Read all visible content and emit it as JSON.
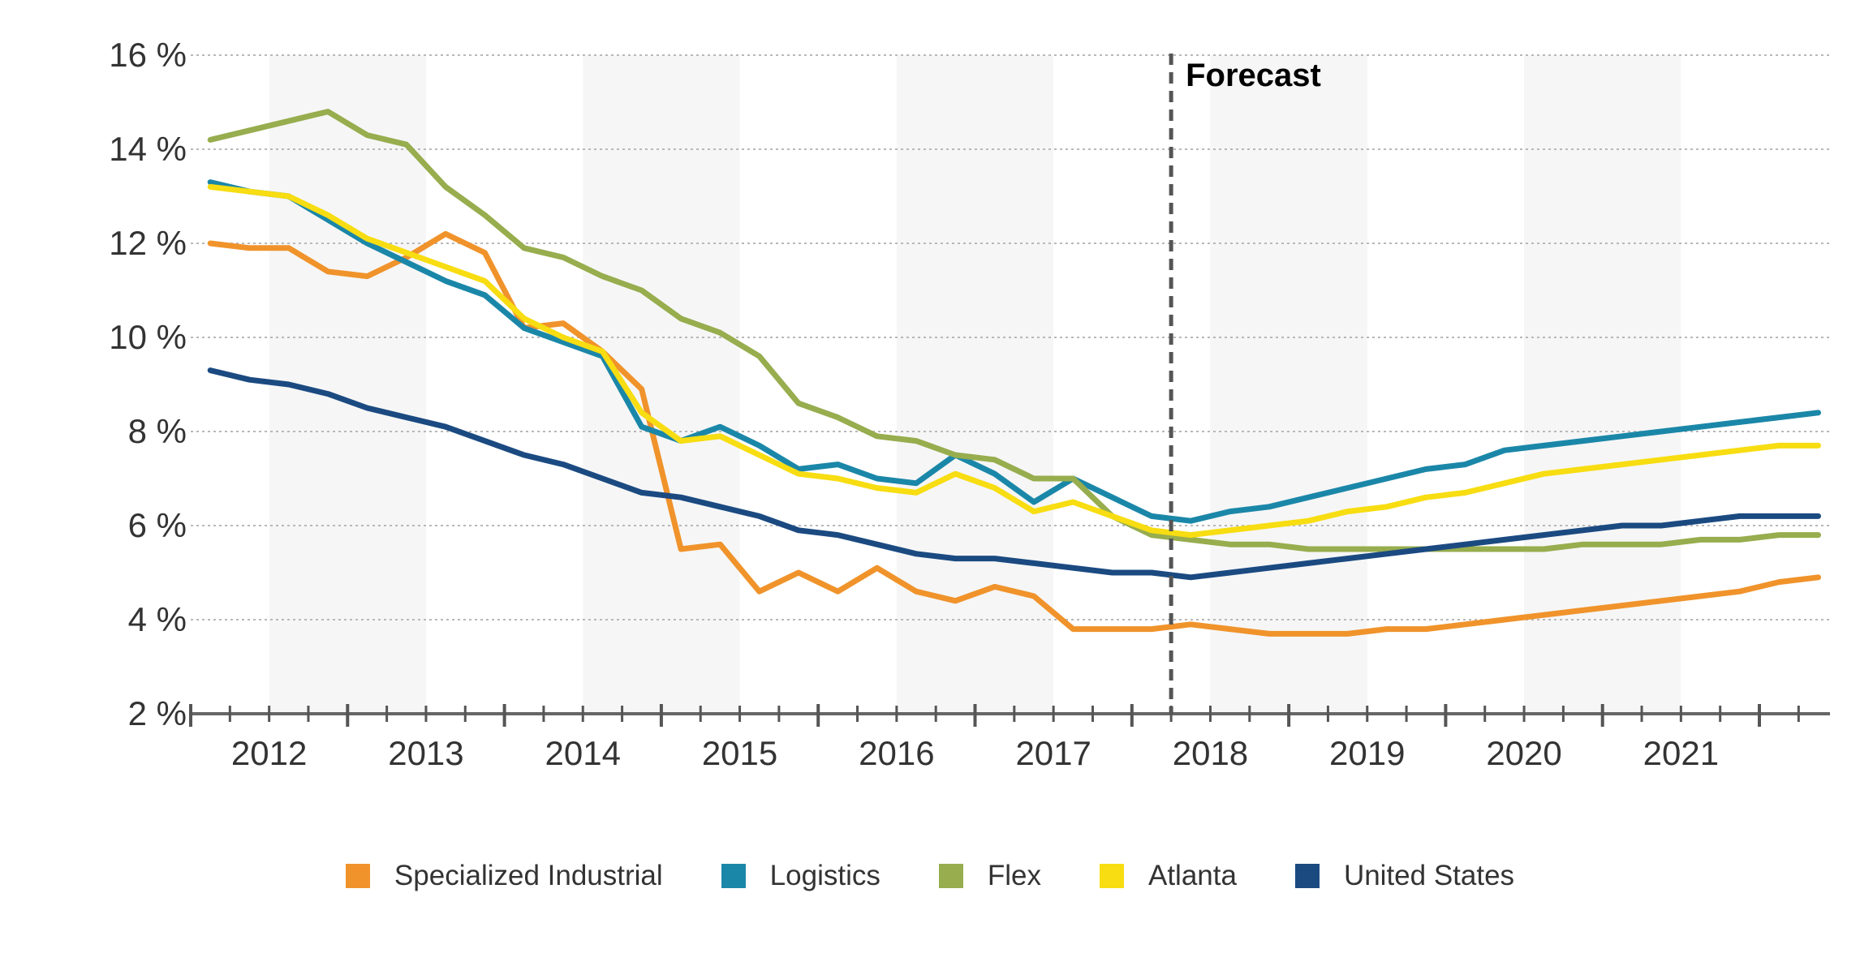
{
  "chart_data": {
    "type": "line",
    "title": "",
    "xlabel": "",
    "ylabel": "",
    "ylim": [
      2,
      16
    ],
    "y_ticks": [
      "2 %",
      "4 %",
      "6 %",
      "8 %",
      "10 %",
      "12 %",
      "14 %",
      "16 %"
    ],
    "x_range": [
      2011.5,
      2021.95
    ],
    "x_tick_labels": [
      "2012",
      "2013",
      "2014",
      "2015",
      "2016",
      "2017",
      "2018",
      "2019",
      "2020",
      "2021"
    ],
    "grid": "horizontal dotted",
    "shaded_year_bands": [
      "2012",
      "2014",
      "2016",
      "2018",
      "2020"
    ],
    "forecast_label": "Forecast",
    "forecast_start": 2017.75,
    "legend_placement": "bottom",
    "x": [
      2011.625,
      2011.875,
      2012.125,
      2012.375,
      2012.625,
      2012.875,
      2013.125,
      2013.375,
      2013.625,
      2013.875,
      2014.125,
      2014.375,
      2014.625,
      2014.875,
      2015.125,
      2015.375,
      2015.625,
      2015.875,
      2016.125,
      2016.375,
      2016.625,
      2016.875,
      2017.125,
      2017.375,
      2017.625,
      2017.875,
      2018.125,
      2018.375,
      2018.625,
      2018.875,
      2019.125,
      2019.375,
      2019.625,
      2019.875,
      2020.125,
      2020.375,
      2020.625,
      2020.875,
      2021.125,
      2021.375,
      2021.625,
      2021.875
    ],
    "series": [
      {
        "name": "Specialized Industrial",
        "color": "#F0932B",
        "values": [
          12.0,
          11.9,
          11.9,
          11.4,
          11.3,
          11.7,
          12.2,
          11.8,
          10.2,
          10.3,
          9.7,
          8.9,
          5.5,
          5.6,
          4.6,
          5.0,
          4.6,
          5.1,
          4.6,
          4.4,
          4.7,
          4.5,
          3.8,
          3.8,
          3.8,
          3.9,
          3.8,
          3.7,
          3.7,
          3.7,
          3.8,
          3.8,
          3.9,
          4.0,
          4.1,
          4.2,
          4.3,
          4.4,
          4.5,
          4.6,
          4.8,
          4.9
        ]
      },
      {
        "name": "Logistics",
        "color": "#1B87A8",
        "values": [
          13.3,
          13.1,
          13.0,
          12.5,
          12.0,
          11.6,
          11.2,
          10.9,
          10.2,
          9.9,
          9.6,
          8.1,
          7.8,
          8.1,
          7.7,
          7.2,
          7.3,
          7.0,
          6.9,
          7.5,
          7.1,
          6.5,
          7.0,
          6.6,
          6.2,
          6.1,
          6.3,
          6.4,
          6.6,
          6.8,
          7.0,
          7.2,
          7.3,
          7.6,
          7.7,
          7.8,
          7.9,
          8.0,
          8.1,
          8.2,
          8.3,
          8.4
        ]
      },
      {
        "name": "Flex",
        "color": "#97AD4E",
        "values": [
          14.2,
          14.4,
          14.6,
          14.8,
          14.3,
          14.1,
          13.2,
          12.6,
          11.9,
          11.7,
          11.3,
          11.0,
          10.4,
          10.1,
          9.6,
          8.6,
          8.3,
          7.9,
          7.8,
          7.5,
          7.4,
          7.0,
          7.0,
          6.2,
          5.8,
          5.7,
          5.6,
          5.6,
          5.5,
          5.5,
          5.5,
          5.5,
          5.5,
          5.5,
          5.5,
          5.6,
          5.6,
          5.6,
          5.7,
          5.7,
          5.8,
          5.8
        ]
      },
      {
        "name": "Atlanta",
        "color": "#F7DD11",
        "values": [
          13.2,
          13.1,
          13.0,
          12.6,
          12.1,
          11.8,
          11.5,
          11.2,
          10.4,
          10.0,
          9.7,
          8.4,
          7.8,
          7.9,
          7.5,
          7.1,
          7.0,
          6.8,
          6.7,
          7.1,
          6.8,
          6.3,
          6.5,
          6.2,
          5.9,
          5.8,
          5.9,
          6.0,
          6.1,
          6.3,
          6.4,
          6.6,
          6.7,
          6.9,
          7.1,
          7.2,
          7.3,
          7.4,
          7.5,
          7.6,
          7.7,
          7.7
        ]
      },
      {
        "name": "United States",
        "color": "#1B4A81",
        "values": [
          9.3,
          9.1,
          9.0,
          8.8,
          8.5,
          8.3,
          8.1,
          7.8,
          7.5,
          7.3,
          7.0,
          6.7,
          6.6,
          6.4,
          6.2,
          5.9,
          5.8,
          5.6,
          5.4,
          5.3,
          5.3,
          5.2,
          5.1,
          5.0,
          5.0,
          4.9,
          5.0,
          5.1,
          5.2,
          5.3,
          5.4,
          5.5,
          5.6,
          5.7,
          5.8,
          5.9,
          6.0,
          6.0,
          6.1,
          6.2,
          6.2,
          6.2
        ]
      }
    ]
  }
}
